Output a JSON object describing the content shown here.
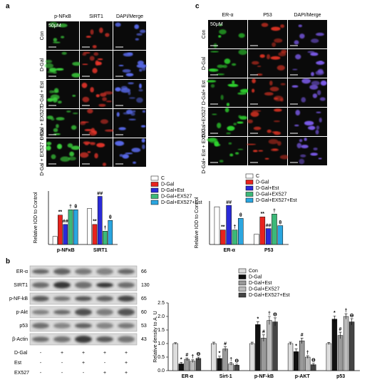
{
  "panels": {
    "a": {
      "label": "a",
      "columns": [
        "p-NFκB",
        "SIRT1",
        "DAPI/Merge"
      ],
      "rows": [
        "Con",
        "D-Gal",
        "D-Gal + Est",
        "D-Gal + EX527",
        "D-Gal + EX527 + Est"
      ],
      "scale": "50μM"
    },
    "c": {
      "label": "c",
      "columns": [
        "ER-α",
        "P53",
        "DAPI/Merge"
      ],
      "rows": [
        "Con",
        "D-Gal",
        "D-Gal+ Est",
        "D-Gal+EX527",
        "D-Gal+ Est + EX527"
      ],
      "scale": "50μM"
    },
    "b": {
      "label": "b",
      "proteins": [
        "ER-α",
        "SIRT1",
        "p-NF-kB",
        "p-Akt",
        "p53",
        "β-Actin"
      ],
      "kda": [
        66,
        130,
        65,
        60,
        53,
        43
      ],
      "treatments": [
        {
          "name": "D-Gal",
          "signs": [
            "-",
            "+",
            "+",
            "+",
            "+"
          ]
        },
        {
          "name": "Est",
          "signs": [
            "-",
            "-",
            "+",
            "-",
            "+"
          ]
        },
        {
          "name": "EX527",
          "signs": [
            "-",
            "-",
            "-",
            "+",
            "+"
          ]
        }
      ]
    }
  },
  "chart_data": [
    {
      "type": "bar",
      "y_label": "Relative IOD to Control",
      "categories": [
        "p-NFκB",
        "SIRT1"
      ],
      "ylim": [
        0,
        4
      ],
      "series": [
        {
          "name": "C",
          "color": "#ffffff",
          "values": [
            0.6,
            2.7
          ],
          "markers": [
            null,
            null
          ]
        },
        {
          "name": "D-Gal",
          "color": "#e8231d",
          "values": [
            2.2,
            1.5
          ],
          "markers": [
            "**",
            "**"
          ]
        },
        {
          "name": "D-Gal+Est",
          "color": "#2a2ad8",
          "values": [
            1.5,
            3.6
          ],
          "markers": [
            "##",
            "##"
          ]
        },
        {
          "name": "D-Gal+EX527",
          "color": "#3cb878",
          "values": [
            2.6,
            1.0
          ],
          "markers": [
            "†",
            "†"
          ]
        },
        {
          "name": "D-Gal+EX527+Est",
          "color": "#2aa6e0",
          "values": [
            2.6,
            1.8
          ],
          "markers": [
            "θ",
            "θ"
          ]
        }
      ]
    },
    {
      "type": "bar",
      "y_label": "Relative IOD to Control",
      "categories": [
        "ER-α",
        "P53"
      ],
      "ylim": [
        0,
        3
      ],
      "series": [
        {
          "name": "C",
          "color": "#ffffff",
          "values": [
            2.6,
            0.7
          ],
          "markers": [
            null,
            null
          ]
        },
        {
          "name": "D-Gal",
          "color": "#e8231d",
          "values": [
            1.0,
            1.9
          ],
          "markers": [
            "**",
            "**"
          ]
        },
        {
          "name": "D-Gal+Est",
          "color": "#2a2ad8",
          "values": [
            2.7,
            1.1
          ],
          "markers": [
            "##",
            "##"
          ]
        },
        {
          "name": "D-Gal+EX527",
          "color": "#3cb878",
          "values": [
            1.0,
            2.1
          ],
          "markers": [
            "†",
            "†"
          ]
        },
        {
          "name": "D-Gal+EX527+Est",
          "color": "#2aa6e0",
          "values": [
            1.8,
            1.3
          ],
          "markers": [
            "θ",
            "θ"
          ]
        }
      ]
    },
    {
      "type": "bar",
      "y_label": "Relative density to A. U",
      "categories": [
        "ER-α",
        "Sirt-1",
        "p-NF-kB",
        "p-AKT",
        "p53"
      ],
      "ylim": [
        0,
        2.5
      ],
      "yticks": [
        {
          "value": 0,
          "label": "0.0"
        },
        {
          "value": 0.5,
          "label": "0.5"
        },
        {
          "value": 1,
          "label": "1.0"
        },
        {
          "value": 1.5,
          "label": "1.5"
        },
        {
          "value": 2,
          "label": "2.0"
        },
        {
          "value": 2.5,
          "label": "2.5"
        }
      ],
      "series": [
        {
          "name": "Con",
          "color": "#dddddd",
          "values": [
            1.0,
            1.0,
            1.0,
            1.0,
            1.0
          ],
          "errors": [
            0.03,
            0.05,
            0.05,
            0.05,
            0.04
          ],
          "markers": [
            null,
            null,
            null,
            null,
            null
          ]
        },
        {
          "name": "D-Gal",
          "color": "#111111",
          "values": [
            0.25,
            0.45,
            1.7,
            0.7,
            1.9
          ],
          "errors": [
            0.05,
            0.08,
            0.1,
            0.1,
            0.12
          ],
          "markers": [
            "*",
            "*",
            "*",
            "*",
            "*"
          ]
        },
        {
          "name": "D-Gal+Est",
          "color": "#999999",
          "values": [
            0.42,
            0.8,
            1.2,
            1.1,
            1.3
          ],
          "errors": [
            0.05,
            0.08,
            0.12,
            0.1,
            0.12
          ],
          "markers": [
            "#",
            "#",
            "#",
            "#",
            "#"
          ]
        },
        {
          "name": "D-Gal+EX527",
          "color": "#bbbbbb",
          "values": [
            0.35,
            0.25,
            1.85,
            0.5,
            2.0
          ],
          "errors": [
            0.05,
            0.05,
            0.15,
            0.05,
            0.1
          ],
          "markers": [
            "†",
            "†",
            "†",
            "†",
            "†"
          ]
        },
        {
          "name": "D-Gal+EX527+Est",
          "color": "#444444",
          "values": [
            0.45,
            0.2,
            1.8,
            0.22,
            1.8
          ],
          "errors": [
            0.05,
            0.04,
            0.15,
            0.05,
            0.12
          ],
          "markers": [
            "Ɵ",
            "Ɵ",
            "Ɵ",
            "Ɵ",
            "Ɵ"
          ]
        }
      ]
    }
  ]
}
